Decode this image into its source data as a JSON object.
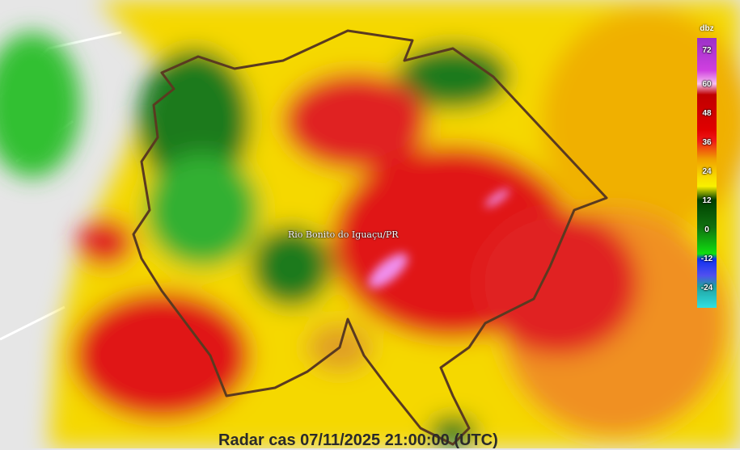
{
  "legend": {
    "unit": "dbz",
    "ticks": [
      "72",
      "60",
      "48",
      "36",
      "24",
      "12",
      "0",
      "-12",
      "-24"
    ]
  },
  "city_label": "Rio Bonito do Iguaçu/PR",
  "caption": "Radar cas 07/11/2025 21:00:00 (UTC)",
  "colors": {
    "yellow": "#f5e000",
    "orange": "#f0a020",
    "red": "#e02020",
    "dark_red": "#c01010",
    "green": "#30b030",
    "dark_green": "#1a6a1a",
    "pink": "#f090f0",
    "boundary": "#5a3a20"
  }
}
